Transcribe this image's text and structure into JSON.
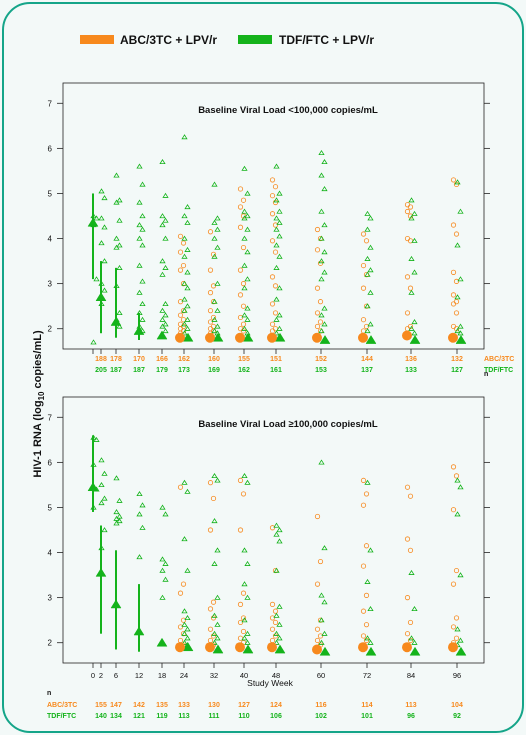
{
  "legend": {
    "abc_label": "ABC/3TC + LPV/r",
    "tdf_label": "TDF/FTC + LPV/r",
    "abc_color": "#f7891d",
    "tdf_color": "#14b31b"
  },
  "y_axis_label_main": "HIV-1 RNA (log",
  "y_axis_label_sub": "10",
  "y_axis_label_end": " copies/mL)",
  "x_axis_label": "Study Week",
  "n_header": "n",
  "row_labels": {
    "abc": "ABC/3TC",
    "tdf": "TDF/FTC"
  },
  "chart_data": [
    {
      "type": "scatter",
      "title": "Baseline Viral Load <100,000 copies/mL",
      "xlabel": "",
      "ylabel": "HIV-1 RNA (log10 copies/mL)",
      "yticks": [
        2,
        3,
        4,
        5,
        6,
        7
      ],
      "ylim": [
        1.55,
        7.45
      ],
      "weeks": [
        0,
        2,
        6,
        12,
        18,
        24,
        32,
        40,
        48,
        60,
        72,
        84,
        96
      ],
      "n_weeks": [
        2,
        6,
        12,
        18,
        24,
        32,
        40,
        48,
        60,
        72,
        84,
        96
      ],
      "n_abc": [
        188,
        178,
        170,
        166,
        162,
        160,
        155,
        151,
        152,
        144,
        136,
        132
      ],
      "n_tdf": [
        205,
        187,
        187,
        179,
        173,
        169,
        162,
        161,
        153,
        137,
        133,
        127
      ],
      "tdf_median": [
        {
          "week": 0,
          "median": 4.35,
          "low": 3.1,
          "high": 5.0
        },
        {
          "week": 2,
          "median": 2.7,
          "low": 1.9,
          "high": 3.5
        },
        {
          "week": 6,
          "median": 2.15,
          "low": 1.8,
          "high": 3.35
        },
        {
          "week": 12,
          "median": 1.95,
          "low": 1.75,
          "high": 2.35
        },
        {
          "week": 18,
          "median": 1.85
        },
        {
          "week": 24,
          "median": 1.8
        },
        {
          "week": 32,
          "median": 1.8
        },
        {
          "week": 40,
          "median": 1.8
        },
        {
          "week": 48,
          "median": 1.8
        },
        {
          "week": 60,
          "median": 1.75
        },
        {
          "week": 72,
          "median": 1.75
        },
        {
          "week": 84,
          "median": 1.75
        },
        {
          "week": 96,
          "median": 1.75
        }
      ],
      "abc_median": [
        {
          "week": 24,
          "median": 1.8
        },
        {
          "week": 32,
          "median": 1.8
        },
        {
          "week": 40,
          "median": 1.8
        },
        {
          "week": 48,
          "median": 1.8
        },
        {
          "week": 60,
          "median": 1.8
        },
        {
          "week": 72,
          "median": 1.8
        },
        {
          "week": 84,
          "median": 1.85
        },
        {
          "week": 96,
          "median": 1.8
        }
      ],
      "tdf_points": [
        {
          "week": 0,
          "values": [
            4.5,
            4.45,
            4.3,
            3.1,
            1.7
          ]
        },
        {
          "week": 2,
          "values": [
            5.05,
            4.9,
            4.45,
            4.25,
            3.9,
            3.5,
            3.0,
            2.85,
            2.55
          ]
        },
        {
          "week": 6,
          "values": [
            5.4,
            4.85,
            4.8,
            4.4,
            4.0,
            3.85,
            3.8,
            3.35,
            2.95,
            2.35,
            2.2,
            2.05
          ]
        },
        {
          "week": 12,
          "values": [
            5.6,
            5.2,
            4.8,
            4.5,
            4.3,
            4.2,
            4.0,
            3.85,
            3.4,
            3.05,
            2.8,
            2.55,
            2.35,
            2.2,
            2.05,
            1.95
          ]
        },
        {
          "week": 18,
          "values": [
            5.7,
            4.95,
            4.5,
            4.4,
            4.3,
            4.0,
            3.5,
            3.35,
            3.2,
            2.55,
            2.4,
            2.3,
            2.2,
            2.1,
            2.05,
            1.95
          ]
        },
        {
          "week": 24,
          "values": [
            6.25,
            4.7,
            4.5,
            4.35,
            4.0,
            3.75,
            3.6,
            3.25,
            3.0,
            2.9,
            2.65,
            2.5,
            2.4,
            2.2,
            2.1,
            2.0,
            1.9
          ]
        },
        {
          "week": 32,
          "values": [
            5.2,
            4.45,
            4.35,
            4.2,
            4.0,
            3.8,
            3.6,
            3.0,
            2.6,
            2.4,
            2.2,
            2.05,
            1.95,
            1.9
          ]
        },
        {
          "week": 40,
          "values": [
            5.55,
            5.0,
            4.6,
            4.5,
            4.45,
            4.2,
            4.0,
            3.7,
            3.4,
            3.1,
            2.9,
            2.45,
            2.3,
            2.2,
            2.0,
            1.9
          ]
        },
        {
          "week": 48,
          "values": [
            5.6,
            5.0,
            4.85,
            4.6,
            4.45,
            4.35,
            4.2,
            4.05,
            3.85,
            3.6,
            3.35,
            2.9,
            2.65,
            2.3,
            2.2,
            2.0,
            1.9
          ]
        },
        {
          "week": 60,
          "values": [
            5.9,
            5.7,
            5.4,
            5.1,
            4.6,
            4.3,
            4.0,
            3.7,
            3.5,
            3.25,
            3.1,
            2.45,
            2.3,
            2.1,
            1.95
          ]
        },
        {
          "week": 72,
          "values": [
            4.55,
            4.45,
            4.2,
            3.8,
            3.55,
            3.3,
            3.2,
            2.8,
            2.5,
            2.1,
            1.95
          ]
        },
        {
          "week": 84,
          "values": [
            4.85,
            4.55,
            4.45,
            3.95,
            3.55,
            3.25,
            2.8,
            2.15,
            2.0,
            1.9
          ]
        },
        {
          "week": 96,
          "values": [
            5.25,
            4.6,
            3.85,
            3.1,
            2.7,
            2.05,
            1.95,
            1.9
          ]
        }
      ],
      "abc_points": [
        {
          "week": 24,
          "values": [
            4.05,
            3.9,
            3.7,
            3.4,
            3.3,
            3.0,
            2.6,
            2.4,
            2.3,
            2.2,
            2.1,
            2.05,
            2.0,
            1.95,
            1.9
          ]
        },
        {
          "week": 32,
          "values": [
            4.15,
            3.65,
            3.3,
            2.95,
            2.8,
            2.6,
            2.4,
            2.25,
            2.15,
            2.05,
            2.0,
            1.95,
            1.9
          ]
        },
        {
          "week": 40,
          "values": [
            5.1,
            4.85,
            4.7,
            4.5,
            4.25,
            3.8,
            3.3,
            3.0,
            2.75,
            2.5,
            2.25,
            2.1,
            2.0,
            1.95
          ]
        },
        {
          "week": 48,
          "values": [
            5.3,
            5.15,
            4.95,
            4.8,
            4.55,
            4.3,
            3.95,
            3.7,
            3.15,
            2.95,
            2.55,
            2.35,
            2.1,
            2.0,
            1.95
          ]
        },
        {
          "week": 60,
          "values": [
            4.2,
            4.0,
            3.75,
            3.45,
            2.9,
            2.6,
            2.35,
            2.15,
            2.05,
            1.95
          ]
        },
        {
          "week": 72,
          "values": [
            4.1,
            3.95,
            3.4,
            3.2,
            2.9,
            2.5,
            2.2,
            2.05,
            1.95
          ]
        },
        {
          "week": 84,
          "values": [
            4.75,
            4.7,
            4.6,
            4.5,
            4.0,
            3.95,
            3.15,
            2.9,
            2.35,
            2.05,
            2.0
          ]
        },
        {
          "week": 96,
          "values": [
            5.3,
            5.2,
            4.3,
            4.1,
            3.25,
            3.05,
            2.75,
            2.6,
            2.55,
            2.35,
            2.05,
            2.0
          ]
        }
      ]
    },
    {
      "type": "scatter",
      "title": "Baseline Viral Load ≥100,000 copies/mL",
      "xlabel": "Study Week",
      "ylabel": "HIV-1 RNA (log10 copies/mL)",
      "yticks": [
        2,
        3,
        4,
        5,
        6,
        7
      ],
      "ylim": [
        1.55,
        7.45
      ],
      "weeks": [
        0,
        2,
        6,
        12,
        18,
        24,
        32,
        40,
        48,
        60,
        72,
        84,
        96
      ],
      "n_weeks": [
        2,
        6,
        12,
        18,
        24,
        32,
        40,
        48,
        60,
        72,
        84,
        96
      ],
      "n_abc": [
        155,
        147,
        142,
        135,
        133,
        130,
        127,
        124,
        116,
        114,
        113,
        104
      ],
      "n_tdf": [
        140,
        134,
        121,
        119,
        113,
        111,
        110,
        106,
        102,
        101,
        96,
        92
      ],
      "tdf_median": [
        {
          "week": 0,
          "median": 5.45,
          "low": 4.9,
          "high": 6.6
        },
        {
          "week": 2,
          "median": 3.55,
          "low": 2.2,
          "high": 4.6
        },
        {
          "week": 6,
          "median": 2.85,
          "low": 1.85,
          "high": 4.05
        },
        {
          "week": 12,
          "median": 2.25,
          "low": 1.8,
          "high": 3.3
        },
        {
          "week": 18,
          "median": 2.0
        },
        {
          "week": 24,
          "median": 1.9
        },
        {
          "week": 32,
          "median": 1.85
        },
        {
          "week": 40,
          "median": 1.85
        },
        {
          "week": 48,
          "median": 1.85
        },
        {
          "week": 60,
          "median": 1.8
        },
        {
          "week": 72,
          "median": 1.8
        },
        {
          "week": 84,
          "median": 1.8
        },
        {
          "week": 96,
          "median": 1.8
        }
      ],
      "abc_median": [
        {
          "week": 24,
          "median": 1.9
        },
        {
          "week": 32,
          "median": 1.9
        },
        {
          "week": 40,
          "median": 1.9
        },
        {
          "week": 48,
          "median": 1.9
        },
        {
          "week": 60,
          "median": 1.85
        },
        {
          "week": 72,
          "median": 1.9
        },
        {
          "week": 84,
          "median": 1.9
        },
        {
          "week": 96,
          "median": 1.9
        }
      ],
      "tdf_points": [
        {
          "week": 0,
          "values": [
            6.55,
            6.5,
            5.95,
            5.4,
            5.0
          ]
        },
        {
          "week": 2,
          "values": [
            6.05,
            5.75,
            5.5,
            5.2,
            5.1,
            4.5,
            4.1
          ]
        },
        {
          "week": 6,
          "values": [
            5.65,
            5.15,
            4.9,
            4.8,
            4.75,
            4.7,
            4.65
          ]
        },
        {
          "week": 12,
          "values": [
            5.3,
            5.05,
            4.85,
            4.55,
            3.9
          ]
        },
        {
          "week": 18,
          "values": [
            5.0,
            4.85,
            3.85,
            3.75,
            3.6,
            3.4,
            3.0
          ]
        },
        {
          "week": 24,
          "values": [
            5.55,
            5.35,
            4.3,
            3.6,
            2.7,
            2.55,
            2.4,
            2.3,
            2.2,
            2.1,
            2.0,
            1.95
          ]
        },
        {
          "week": 32,
          "values": [
            5.7,
            5.6,
            4.7,
            4.05,
            3.75,
            3.0,
            2.6,
            2.4,
            2.2,
            2.1,
            2.0
          ]
        },
        {
          "week": 40,
          "values": [
            5.7,
            5.55,
            4.05,
            3.75,
            3.3,
            3.0,
            2.5,
            2.2,
            2.1,
            2.0
          ]
        },
        {
          "week": 48,
          "values": [
            4.6,
            4.5,
            4.4,
            4.25,
            3.6,
            2.8,
            2.6,
            2.4,
            2.2,
            2.1,
            2.0
          ]
        },
        {
          "week": 60,
          "values": [
            6.0,
            4.1,
            3.05,
            2.9,
            2.5,
            2.2,
            2.0
          ]
        },
        {
          "week": 72,
          "values": [
            5.55,
            4.05,
            3.35,
            2.75,
            2.1,
            2.0
          ]
        },
        {
          "week": 84,
          "values": [
            3.55,
            2.75,
            2.1,
            2.0
          ]
        },
        {
          "week": 96,
          "values": [
            5.6,
            5.45,
            4.85,
            3.5,
            2.3,
            2.05,
            1.95
          ]
        }
      ],
      "abc_points": [
        {
          "week": 24,
          "values": [
            5.45,
            3.3,
            3.1,
            2.5,
            2.35,
            2.2,
            2.05,
            1.95
          ]
        },
        {
          "week": 32,
          "values": [
            5.55,
            5.2,
            4.5,
            2.9,
            2.75,
            2.55,
            2.3,
            2.15,
            2.05,
            1.95
          ]
        },
        {
          "week": 40,
          "values": [
            5.6,
            5.3,
            4.5,
            3.1,
            2.85,
            2.55,
            2.45,
            2.25,
            2.1,
            2.0
          ]
        },
        {
          "week": 48,
          "values": [
            4.55,
            3.6,
            2.85,
            2.7,
            2.55,
            2.45,
            2.3,
            2.15,
            2.05
          ]
        },
        {
          "week": 60,
          "values": [
            4.8,
            3.8,
            3.3,
            2.5,
            2.3,
            2.15,
            2.05,
            1.95
          ]
        },
        {
          "week": 72,
          "values": [
            5.6,
            5.3,
            5.05,
            4.15,
            3.7,
            3.05,
            2.7,
            2.4,
            2.15,
            2.05,
            1.95
          ]
        },
        {
          "week": 84,
          "values": [
            5.45,
            5.25,
            4.3,
            4.05,
            3.0,
            2.45,
            2.2,
            2.05
          ]
        },
        {
          "week": 96,
          "values": [
            5.9,
            5.7,
            4.95,
            3.6,
            3.3,
            2.55,
            2.35,
            2.1,
            2.0
          ]
        }
      ]
    }
  ]
}
